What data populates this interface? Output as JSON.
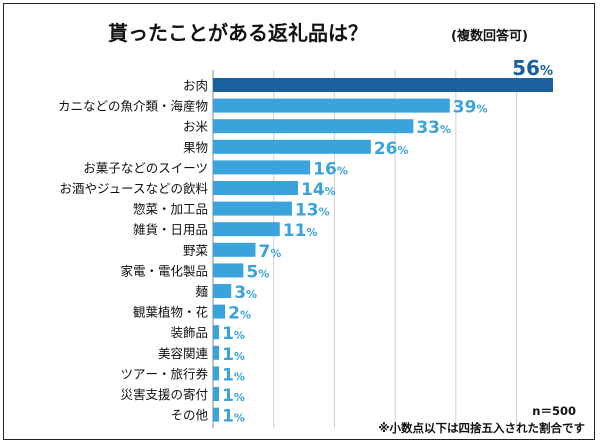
{
  "chart_data": {
    "type": "bar",
    "orientation": "horizontal",
    "title": "貰ったことがある返礼品は？",
    "subtitle": "(複数回答可)",
    "unit": "%",
    "categories": [
      "お肉",
      "カニなどの魚介類・海産物",
      "お米",
      "果物",
      "お菓子などのスイーツ",
      "お酒やジュースなどの飲料",
      "惣菜・加工品",
      "雑貨・日用品",
      "野菜",
      "家電・電化製品",
      "麺",
      "観葉植物・花",
      "装飾品",
      "美容関連",
      "ツアー・旅行券",
      "災害支援の寄付",
      "その他"
    ],
    "values": [
      56,
      39,
      33,
      26,
      16,
      14,
      13,
      11,
      7,
      5,
      3,
      2,
      1,
      1,
      1,
      1,
      1
    ],
    "xlim": [
      0,
      56
    ],
    "grid": true,
    "sample_note": "n＝500",
    "footnote": "※小数点以下は四捨五入された割合です",
    "colors": {
      "top_bar": "#1a5f9e",
      "bar": "#3aa3dc",
      "top_label": "#1a5f9e",
      "label": "#3aa3dc",
      "grid": "#cfcfcf"
    }
  }
}
